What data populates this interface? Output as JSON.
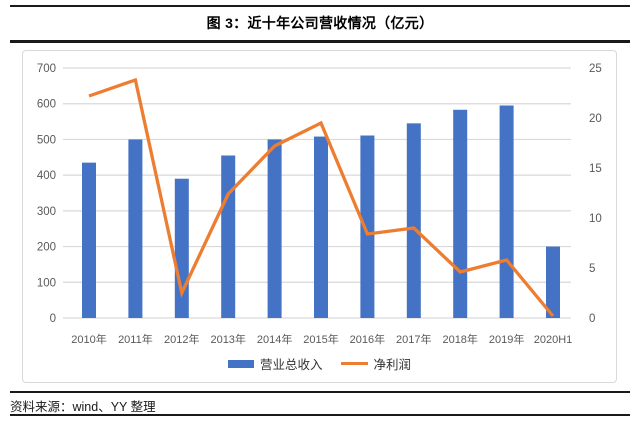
{
  "page": {
    "title": "图 3：近十年公司营收情况（亿元）",
    "source": "资料来源：wind、YY 整理"
  },
  "chart_data": {
    "type": "bar",
    "subtype": "bar+line dual axis",
    "title": "图 3：近十年公司营收情况（亿元）",
    "categories": [
      "2010年",
      "2011年",
      "2012年",
      "2013年",
      "2014年",
      "2015年",
      "2016年",
      "2017年",
      "2018年",
      "2019年",
      "2020H1"
    ],
    "series": [
      {
        "name": "营业总收入",
        "type": "bar",
        "axis": "left",
        "color": "#4472C4",
        "values": [
          435,
          500,
          390,
          455,
          500,
          508,
          511,
          545,
          583,
          595,
          200
        ]
      },
      {
        "name": "净利润",
        "type": "line",
        "axis": "right",
        "color": "#ED7D31",
        "values": [
          22.2,
          23.8,
          2.5,
          12.4,
          17.2,
          19.5,
          8.4,
          9.0,
          4.6,
          5.8,
          0.2
        ]
      }
    ],
    "left_axis": {
      "min": 0,
      "max": 700,
      "step": 100
    },
    "right_axis": {
      "min": 0,
      "max": 25,
      "step": 5
    },
    "grid": true,
    "legend_position": "bottom",
    "tick_color": "#595959",
    "grid_color": "#d9d9d9"
  }
}
